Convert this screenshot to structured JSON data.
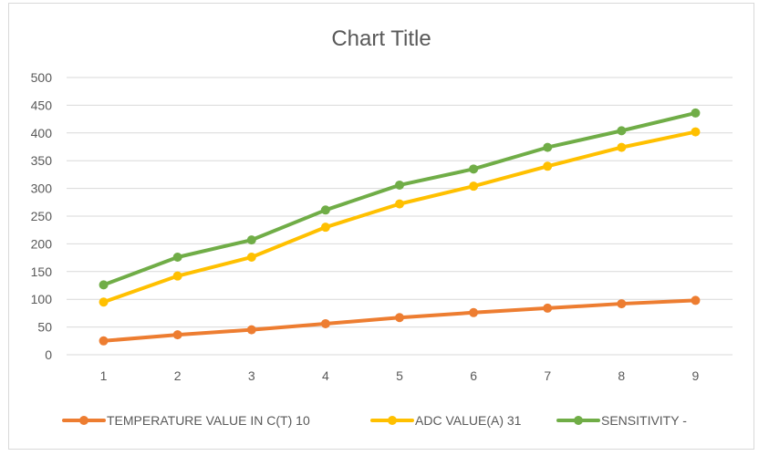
{
  "chart_data": {
    "type": "line",
    "title": "Chart Title",
    "xlabel": "",
    "ylabel": "",
    "categories": [
      "1",
      "2",
      "3",
      "4",
      "5",
      "6",
      "7",
      "8",
      "9"
    ],
    "ylim": [
      0,
      500
    ],
    "yticks": [
      "0",
      "50",
      "100",
      "150",
      "200",
      "250",
      "300",
      "350",
      "400",
      "450",
      "500"
    ],
    "grid": true,
    "legend_position": "bottom",
    "series": [
      {
        "name": "TEMPERATURE VALUE IN C(T) 10",
        "color": "#ED7D31",
        "values": [
          25,
          36,
          45,
          56,
          67,
          76,
          84,
          92,
          98
        ]
      },
      {
        "name": "ADC VALUE(A) 31",
        "color": "#FFC000",
        "values": [
          95,
          142,
          176,
          230,
          272,
          304,
          340,
          374,
          402
        ]
      },
      {
        "name": "SENSITIVITY -",
        "color": "#70AD47",
        "values": [
          126,
          176,
          207,
          261,
          306,
          335,
          374,
          404,
          436
        ]
      }
    ]
  }
}
